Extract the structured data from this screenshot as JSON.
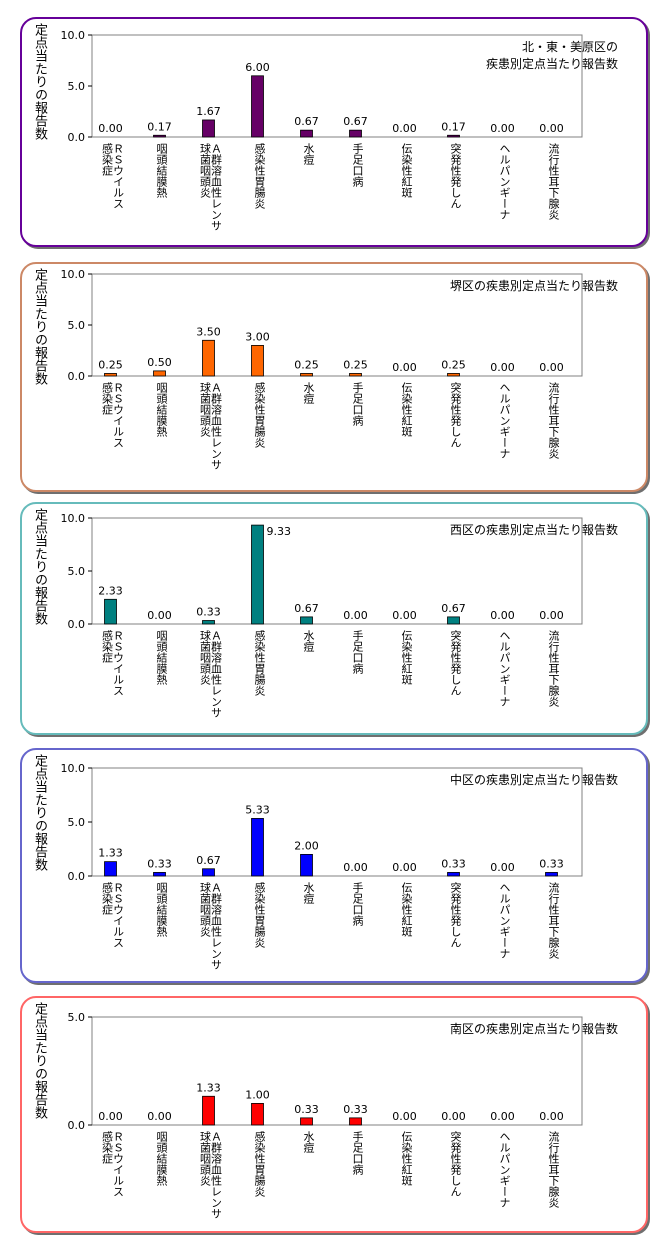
{
  "y_axis_label": "定点当たりの報告数",
  "categories": [
    "ＲＳウイルス\n感染症",
    "咽頭結膜熱",
    "Ａ群溶血性レンサ\n球菌咽頭炎",
    "感染性胃腸炎",
    "水痘",
    "手足口病",
    "伝染性紅斑",
    "突発性発しん",
    "ヘルパンギーナ",
    "流行性耳下腺炎"
  ],
  "chart_data": [
    {
      "type": "bar",
      "title": "北・東・美原区の\n疾患別定点当たり報告数",
      "ylim": [
        0,
        10
      ],
      "yticks": [
        "0.0",
        "5.0",
        "10.0"
      ],
      "color": "#660066",
      "values": [
        0.0,
        0.17,
        1.67,
        6.0,
        0.67,
        0.67,
        0.0,
        0.17,
        0.0,
        0.0
      ],
      "value_labels": [
        "0.00",
        "0.17",
        "1.67",
        "6.00",
        "0.67",
        "0.67",
        "0.00",
        "0.17",
        "0.00",
        "0.00"
      ]
    },
    {
      "type": "bar",
      "title": "堺区の疾患別定点当たり報告数",
      "ylim": [
        0,
        10
      ],
      "yticks": [
        "0.0",
        "5.0",
        "10.0"
      ],
      "color": "#ff6600",
      "values": [
        0.25,
        0.5,
        3.5,
        3.0,
        0.25,
        0.25,
        0.0,
        0.25,
        0.0,
        0.0
      ],
      "value_labels": [
        "0.25",
        "0.50",
        "3.50",
        "3.00",
        "0.25",
        "0.25",
        "0.00",
        "0.25",
        "0.00",
        "0.00"
      ]
    },
    {
      "type": "bar",
      "title": "西区の疾患別定点当たり報告数",
      "ylim": [
        0,
        10
      ],
      "yticks": [
        "0.0",
        "5.0",
        "10.0"
      ],
      "color": "#008080",
      "values": [
        2.33,
        0.0,
        0.33,
        9.33,
        0.67,
        0.0,
        0.0,
        0.67,
        0.0,
        0.0
      ],
      "value_labels": [
        "2.33",
        "0.00",
        "0.33",
        "9.33",
        "0.67",
        "0.00",
        "0.00",
        "0.67",
        "0.00",
        "0.00"
      ]
    },
    {
      "type": "bar",
      "title": "中区の疾患別定点当たり報告数",
      "ylim": [
        0,
        10
      ],
      "yticks": [
        "0.0",
        "5.0",
        "10.0"
      ],
      "color": "#0000ff",
      "values": [
        1.33,
        0.33,
        0.67,
        5.33,
        2.0,
        0.0,
        0.0,
        0.33,
        0.0,
        0.33
      ],
      "value_labels": [
        "1.33",
        "0.33",
        "0.67",
        "5.33",
        "2.00",
        "0.00",
        "0.00",
        "0.33",
        "0.00",
        "0.33"
      ]
    },
    {
      "type": "bar",
      "title": "南区の疾患別定点当たり報告数",
      "ylim": [
        0,
        5
      ],
      "yticks": [
        "0.0",
        "5.0"
      ],
      "color": "#ff0000",
      "values": [
        0.0,
        0.0,
        1.33,
        1.0,
        0.33,
        0.33,
        0.0,
        0.0,
        0.0,
        0.0
      ],
      "value_labels": [
        "0.00",
        "0.00",
        "1.33",
        "1.00",
        "0.33",
        "0.33",
        "0.00",
        "0.00",
        "0.00",
        "0.00"
      ]
    }
  ],
  "panel_borders": [
    "#660099",
    "#cc8866",
    "#66bbbb",
    "#6666cc",
    "#ff6666"
  ]
}
